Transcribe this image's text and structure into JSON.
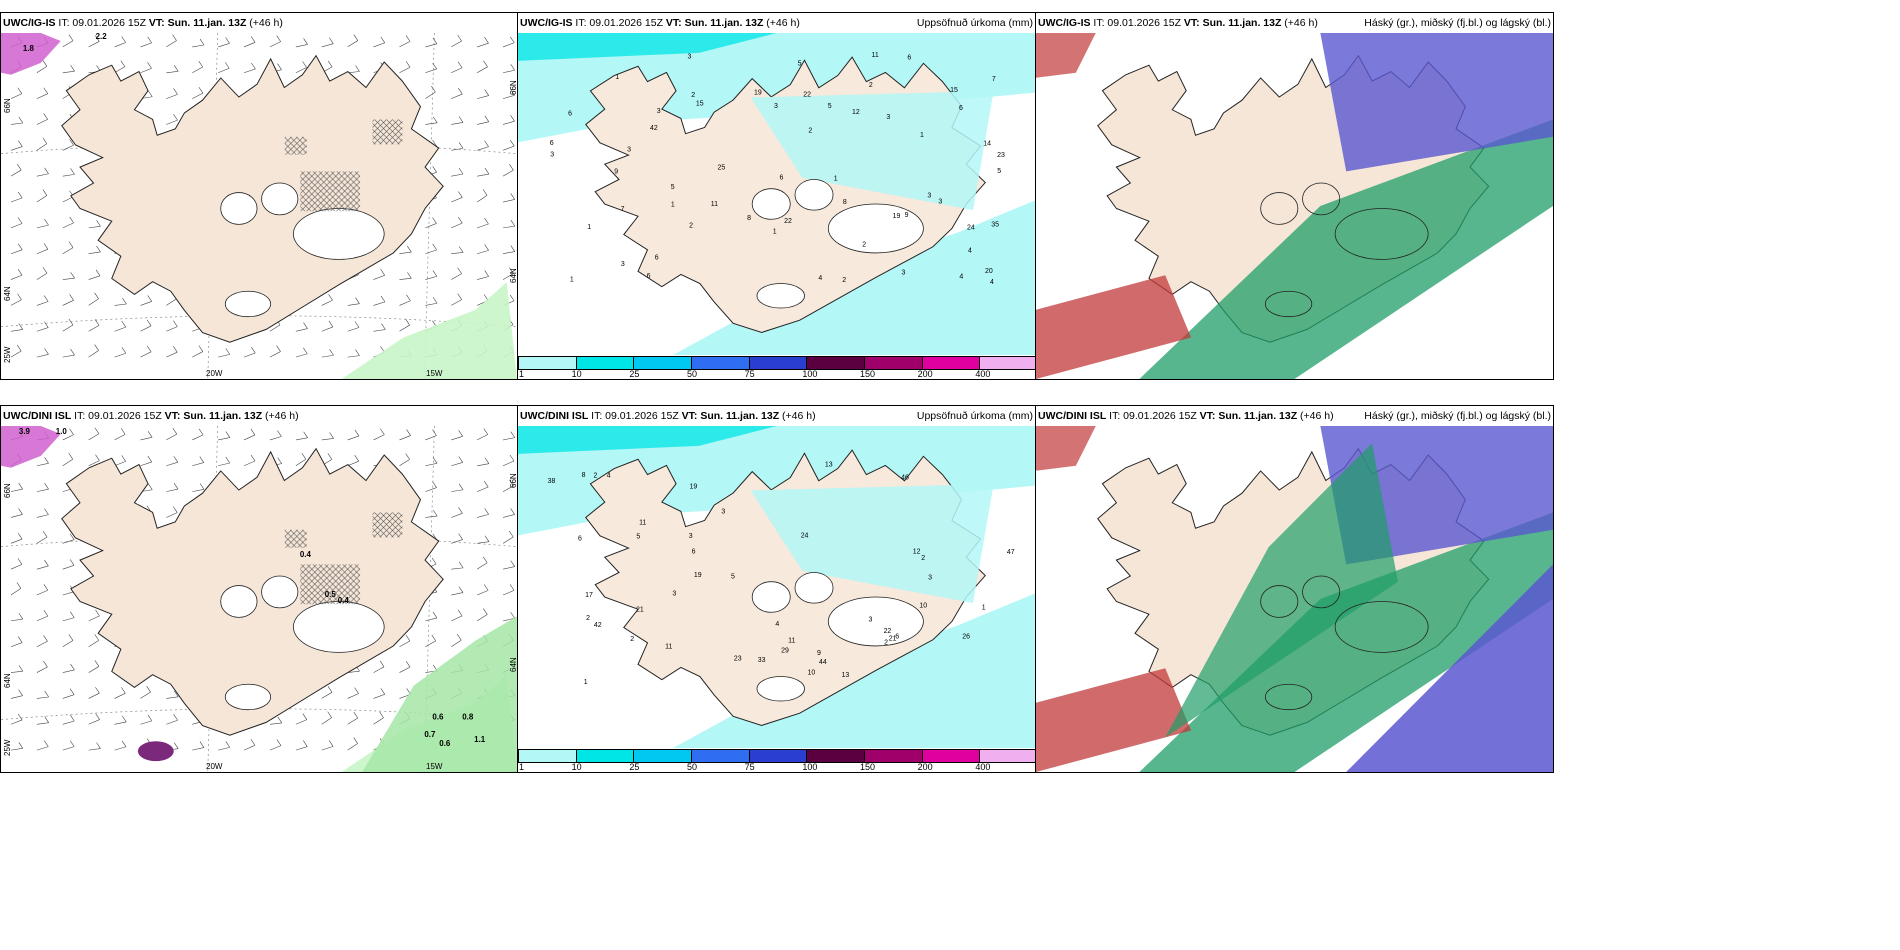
{
  "panels": [
    {
      "id": "r1c1",
      "model": "UWC/IG-IS",
      "it": "IT: 09.01.2026 15Z",
      "vt_label": "VT:",
      "vt": "Sun. 11.jan. 13Z",
      "lead": "(+46 h)",
      "right": "",
      "axis_labels": {
        "bottom": [
          "20W",
          "15W"
        ],
        "left": [
          "66N",
          "64N",
          "25W"
        ],
        "right": [
          "66N",
          "64N"
        ]
      },
      "numbers": [
        "1.8",
        "2.2"
      ]
    },
    {
      "id": "r1c2",
      "model": "UWC/IG-IS",
      "it": "IT: 09.01.2026 15Z",
      "vt_label": "VT:",
      "vt": "Sun. 11.jan. 13Z",
      "lead": "(+46 h)",
      "right": "Uppsöfnuð úrkoma (mm)",
      "numbers": [
        "15",
        "14",
        "12",
        "23",
        "25",
        "35",
        "11",
        "11",
        "24",
        "15",
        "42",
        "3",
        "1",
        "2",
        "1",
        "6",
        "5",
        "6",
        "3",
        "19",
        "20",
        "22",
        "3",
        "7",
        "2",
        "6",
        "1",
        "2",
        "4",
        "7",
        "6",
        "4",
        "9",
        "5",
        "3",
        "3",
        "5",
        "8",
        "6",
        "3",
        "2",
        "6",
        "8",
        "22",
        "4",
        "1",
        "5",
        "3",
        "2",
        "6",
        "4",
        "3",
        "3",
        "2",
        "1",
        "1",
        "3",
        "19",
        "9",
        "1"
      ]
    },
    {
      "id": "r1c3",
      "model": "UWC/IG-IS",
      "it": "IT: 09.01.2026 15Z",
      "vt_label": "VT:",
      "vt": "Sun. 11.jan. 13Z",
      "lead": "(+46 h)",
      "right": "Háský (gr.), miðský (fj.bl.) og lágský (bl.)"
    },
    {
      "id": "r2c1",
      "model": "UWC/DINI ISL",
      "it": "IT: 09.01.2026 15Z",
      "vt_label": "VT:",
      "vt": "Sun. 11.jan. 13Z",
      "lead": "(+46 h)",
      "right": "",
      "axis_labels": {
        "bottom": [
          "20W",
          "15W"
        ],
        "left": [
          "66N",
          "64N",
          "25W"
        ],
        "right": [
          "66N",
          "64N"
        ]
      },
      "numbers": [
        "3.9",
        "1.0",
        "0.4",
        "0.5",
        "0.4",
        "0.6",
        "0.8",
        "0.7",
        "0.6",
        "1.1"
      ]
    },
    {
      "id": "r2c2",
      "model": "UWC/DINI ISL",
      "it": "IT: 09.01.2026 15Z",
      "vt_label": "VT:",
      "vt": "Sun. 11.jan. 13Z",
      "lead": "(+46 h)",
      "right": "Uppsöfnuð úrkoma (mm)",
      "numbers": [
        "23",
        "11",
        "24",
        "38",
        "47",
        "42",
        "29",
        "17",
        "12",
        "11",
        "21",
        "26",
        "33",
        "13",
        "46",
        "44",
        "22",
        "21",
        "1",
        "2",
        "4",
        "3",
        "5",
        "6",
        "9",
        "11",
        "13",
        "10",
        "19",
        "3",
        "8",
        "3",
        "10",
        "4",
        "2",
        "3",
        "2",
        "6",
        "5",
        "3",
        "1",
        "2",
        "19",
        "2",
        "6"
      ]
    },
    {
      "id": "r2c3",
      "model": "UWC/DINI ISL",
      "it": "IT: 09.01.2026 15Z",
      "vt_label": "VT:",
      "vt": "Sun. 11.jan. 13Z",
      "lead": "(+46 h)",
      "right": "Háský (gr.), miðský (fj.bl.) og lágský (bl.)"
    }
  ],
  "legend": {
    "ticks": [
      "1",
      "10",
      "25",
      "50",
      "75",
      "100",
      "150",
      "200",
      "400"
    ],
    "colors": [
      "#b3f7f7",
      "#00e5e5",
      "#00c8f0",
      "#2f6ef0",
      "#2a3fd0",
      "#5a0040",
      "#a0006a",
      "#e000a0",
      "#f0b0f0"
    ]
  },
  "colors": {
    "land": "#f5e6d8",
    "land_precip": "#f7e9dc",
    "precip_light": "#b3f7f7",
    "precip_mid": "#00e5e5",
    "cloud_high": "#1f9e68",
    "cloud_mid": "#5a58d0",
    "cloud_low": "#c23838",
    "coast": "#222222"
  }
}
